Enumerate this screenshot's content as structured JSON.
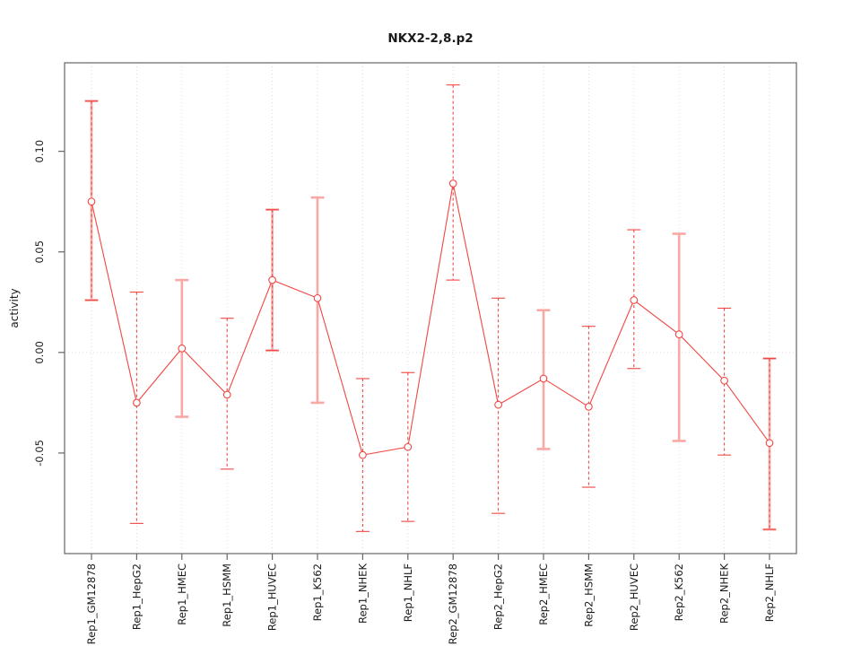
{
  "chart_data": {
    "type": "line",
    "title": "NKX2-2,8.p2",
    "xlabel": "",
    "ylabel": "activity",
    "legend_position": "none",
    "grid": "dotted vertical gridline at each category; dotted horizontal line at y=0",
    "categories": [
      "Rep1_GM12878",
      "Rep1_HepG2",
      "Rep1_HMEC",
      "Rep1_HSMM",
      "Rep1_HUVEC",
      "Rep1_K562",
      "Rep1_NHEK",
      "Rep1_NHLF",
      "Rep2_GM12878",
      "Rep2_HepG2",
      "Rep2_HMEC",
      "Rep2_HSMM",
      "Rep2_HUVEC",
      "Rep2_K562",
      "Rep2_NHEK",
      "Rep2_NHLF"
    ],
    "series": [
      {
        "name": "activity",
        "marker": "open-circle",
        "values": [
          0.075,
          -0.025,
          0.002,
          -0.021,
          0.036,
          0.027,
          -0.051,
          -0.047,
          0.084,
          -0.026,
          -0.013,
          -0.027,
          0.026,
          0.009,
          -0.014,
          -0.045
        ],
        "error_low": [
          0.026,
          -0.085,
          -0.032,
          -0.058,
          0.001,
          -0.025,
          -0.089,
          -0.084,
          0.036,
          -0.08,
          -0.048,
          -0.067,
          -0.008,
          -0.044,
          -0.051,
          -0.088
        ],
        "error_high": [
          0.125,
          0.03,
          0.036,
          0.017,
          0.071,
          0.077,
          -0.013,
          -0.01,
          0.133,
          0.027,
          0.021,
          0.013,
          0.061,
          0.059,
          0.022,
          -0.003
        ],
        "error_bar_styles": [
          "pink-dashed",
          "dashed",
          "pink",
          "dashed",
          "pink-dashed",
          "pink",
          "dashed",
          "dashed",
          "dashed",
          "dashed",
          "pink",
          "dashed",
          "dashed",
          "pink",
          "dashed",
          "pink-dashed"
        ]
      }
    ],
    "yticks": [
      {
        "value": -0.05,
        "label": "-0.05"
      },
      {
        "value": 0.0,
        "label": "0.00"
      },
      {
        "value": 0.05,
        "label": "0.05"
      },
      {
        "value": 0.1,
        "label": "0.10"
      }
    ],
    "ylim": [
      -0.1,
      0.144
    ],
    "colors": {
      "line_red": "#f04743",
      "error_pink": "#f8a9a6",
      "gridline": "#d9d9d9",
      "axis": "#666666",
      "text": "#1a1a1a",
      "marker_fill": "#ffffff"
    }
  }
}
